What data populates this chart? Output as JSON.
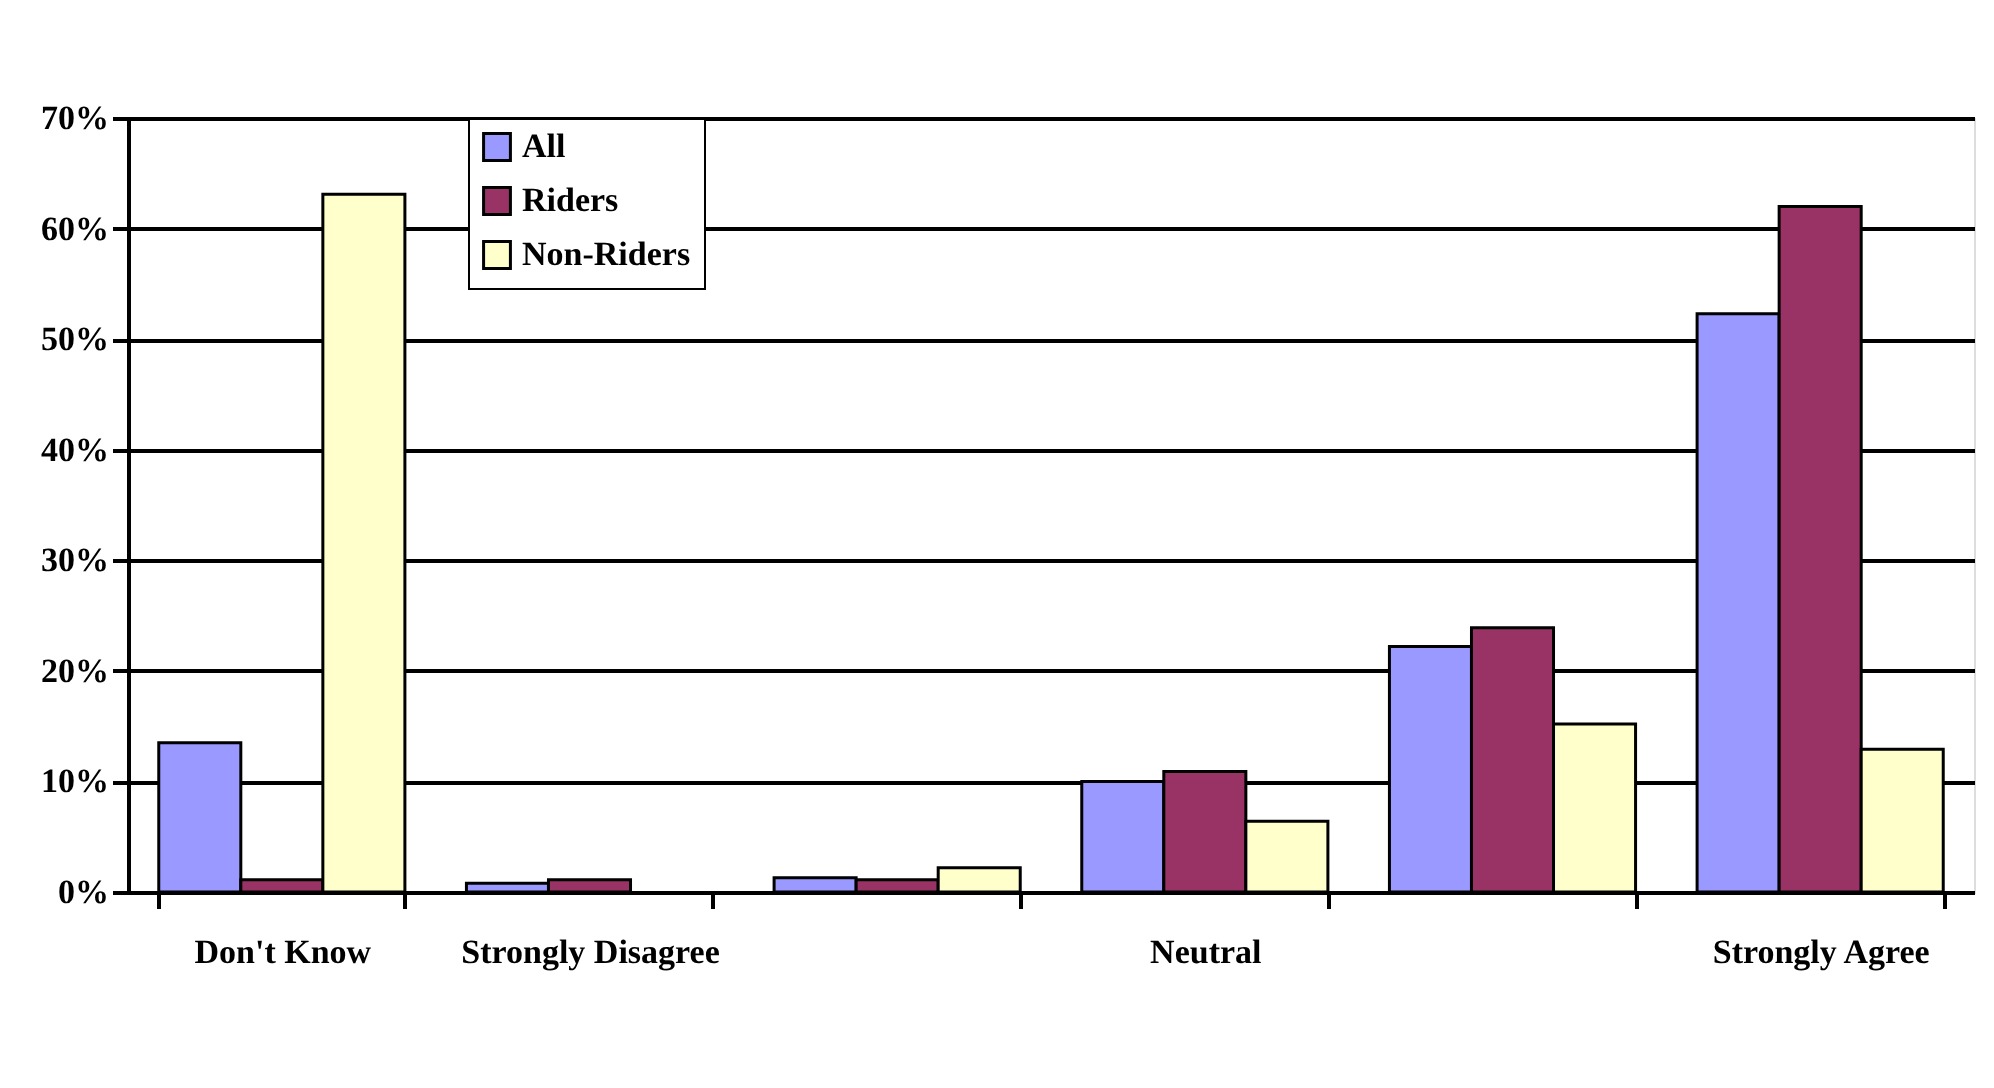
{
  "chart_data": {
    "type": "bar",
    "categories": [
      "Don't Know",
      "Strongly Disagree",
      null,
      "Neutral",
      null,
      "Strongly Agree"
    ],
    "series": [
      {
        "name": "All",
        "color": "#9999ff",
        "values": [
          13.5,
          0.8,
          1.3,
          10,
          22.2,
          52.3
        ]
      },
      {
        "name": "Riders",
        "color": "#993366",
        "values": [
          1.1,
          1.1,
          1.1,
          10.9,
          23.9,
          62
        ]
      },
      {
        "name": "Non-Riders",
        "color": "#ffffcc",
        "values": [
          63.1,
          null,
          2.2,
          6.4,
          15.2,
          12.9
        ]
      }
    ],
    "ylim": [
      0,
      70
    ],
    "yticks": [
      {
        "value": 0,
        "label": "0%"
      },
      {
        "value": 10,
        "label": "10%"
      },
      {
        "value": 20,
        "label": "20%"
      },
      {
        "value": 30,
        "label": "30%"
      },
      {
        "value": 40,
        "label": "40%"
      },
      {
        "value": 50,
        "label": "50%"
      },
      {
        "value": 60,
        "label": "60%"
      },
      {
        "value": 70,
        "label": "70%"
      }
    ],
    "grid": "y",
    "legend": "top left"
  }
}
